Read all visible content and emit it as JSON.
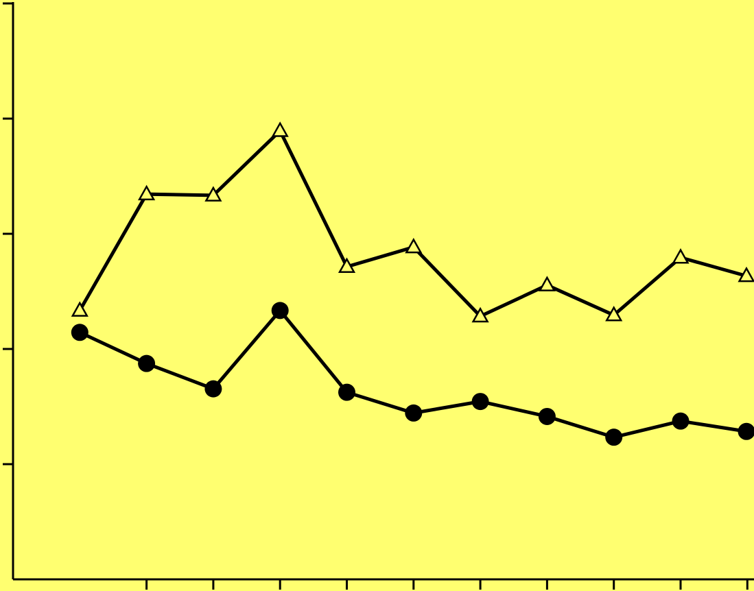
{
  "chart_data": {
    "type": "line",
    "title": "",
    "xlabel": "",
    "ylabel": "",
    "x": [
      1,
      2,
      3,
      4,
      5,
      6,
      7,
      8,
      9,
      10,
      11
    ],
    "xlim": [
      0,
      11
    ],
    "ylim": [
      0,
      5
    ],
    "y_ticks": [
      1,
      2,
      3,
      4,
      5
    ],
    "x_ticks": [
      2,
      3,
      4,
      5,
      6,
      7,
      8,
      9,
      10,
      11
    ],
    "grid": false,
    "legend": "none",
    "series": [
      {
        "marker": "triangle-open",
        "values": [
          2.34,
          3.35,
          3.34,
          3.9,
          2.72,
          2.89,
          2.29,
          2.56,
          2.3,
          2.8,
          2.64
        ]
      },
      {
        "marker": "circle-filled",
        "values": [
          2.15,
          1.88,
          1.66,
          2.34,
          1.63,
          1.45,
          1.55,
          1.42,
          1.24,
          1.38,
          1.29
        ]
      }
    ],
    "colors": {
      "background": "#ffff70",
      "ink": "#000000"
    }
  }
}
